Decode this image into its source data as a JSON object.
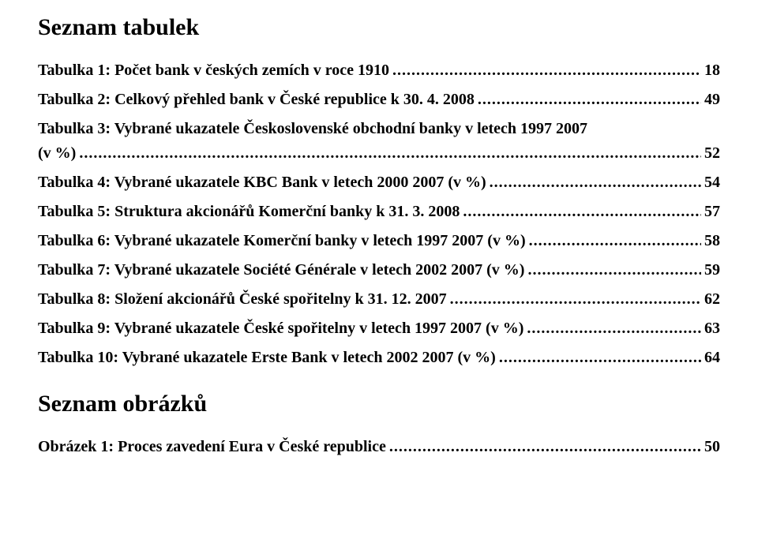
{
  "headings": {
    "tables": "Seznam tabulek",
    "figures": "Seznam obrázků"
  },
  "tables": [
    {
      "label": "Tabulka 1: Počet bank v českých zemích v roce 1910",
      "page": "18"
    },
    {
      "label": "Tabulka 2: Celkový přehled bank v České republice k 30. 4. 2008",
      "page": "49"
    },
    {
      "label_line1": "Tabulka 3: Vybrané ukazatele Československé obchodní banky v letech 1997 2007",
      "label_line2": "(v %)",
      "page": "52"
    },
    {
      "label": "Tabulka 4: Vybrané ukazatele KBC Bank v letech 2000 2007 (v %)",
      "page": "54"
    },
    {
      "label": "Tabulka 5: Struktura akcionářů Komerční banky k 31. 3. 2008",
      "page": "57"
    },
    {
      "label": "Tabulka 6: Vybrané ukazatele Komerční banky v letech 1997 2007 (v %)",
      "page": "58"
    },
    {
      "label": "Tabulka 7: Vybrané ukazatele Société Générale v letech 2002 2007 (v %)",
      "page": "59"
    },
    {
      "label": "Tabulka 8: Složení akcionářů České spořitelny k 31. 12. 2007",
      "page": "62"
    },
    {
      "label": "Tabulka 9: Vybrané ukazatele České spořitelny v letech 1997 2007 (v %)",
      "page": "63"
    },
    {
      "label": "Tabulka 10: Vybrané ukazatele Erste Bank v letech 2002 2007 (v %)",
      "page": "64"
    }
  ],
  "figures": [
    {
      "label": "Obrázek 1: Proces zavedení Eura v České republice",
      "page": "50"
    }
  ]
}
